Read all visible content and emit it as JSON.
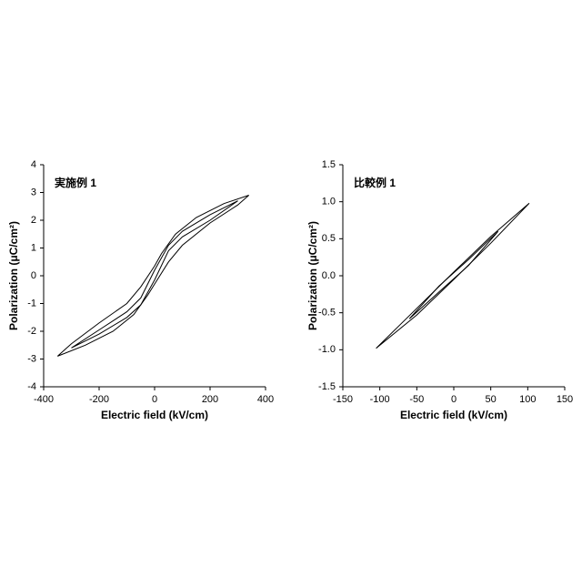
{
  "chart_data": [
    {
      "type": "line",
      "title": "実施例 1",
      "x_label": "Electric field (kV/cm)",
      "y_label": "Polarization (μC/cm²)",
      "xlim": [
        -400,
        400
      ],
      "ylim": [
        -4,
        4
      ],
      "xticks": [
        -400,
        -200,
        0,
        200,
        400
      ],
      "yticks": [
        -4,
        -3,
        -2,
        -1,
        0,
        1,
        2,
        3,
        4
      ],
      "grid": false,
      "series": [
        {
          "color": "#000000",
          "x": [
            340,
            250,
            150,
            75,
            25,
            0,
            -50,
            -100,
            -200,
            -300,
            -350,
            -250,
            -150,
            -75,
            -25,
            0,
            50,
            100,
            200,
            300,
            340
          ],
          "values": [
            2.9,
            2.6,
            2.1,
            1.5,
            0.8,
            0.35,
            -0.4,
            -1.0,
            -1.7,
            -2.45,
            -2.9,
            -2.5,
            -2.0,
            -1.4,
            -0.7,
            -0.3,
            0.5,
            1.1,
            1.9,
            2.55,
            2.9
          ]
        },
        {
          "color": "#000000",
          "x": [
            300,
            200,
            100,
            50,
            0,
            -50,
            -100,
            -200,
            -300,
            -200,
            -100,
            -50,
            0,
            50,
            100,
            200,
            300
          ],
          "values": [
            2.7,
            2.2,
            1.6,
            1.1,
            0.2,
            -0.8,
            -1.3,
            -1.95,
            -2.6,
            -2.1,
            -1.5,
            -1.05,
            -0.15,
            0.9,
            1.4,
            2.0,
            2.7
          ]
        }
      ]
    },
    {
      "type": "line",
      "title": "比較例 1",
      "x_label": "Electric field (kV/cm)",
      "y_label": "Polarization (μC/cm²)",
      "xlim": [
        -150,
        150
      ],
      "ylim": [
        -1.5,
        1.5
      ],
      "xticks": [
        -150,
        -100,
        -50,
        0,
        50,
        100,
        150
      ],
      "yticks": [
        -1.5,
        {
          "value": -1,
          "label": "-1.0"
        },
        -0.5,
        {
          "value": 0,
          "label": "0.0"
        },
        0.5,
        {
          "value": 1,
          "label": "1.0"
        },
        1.5
      ],
      "grid": false,
      "series": [
        {
          "color": "#000000",
          "x": [
            102,
            50,
            0,
            -50,
            -105,
            -50,
            0,
            50,
            102
          ],
          "values": [
            0.98,
            0.53,
            0.05,
            -0.44,
            -0.98,
            -0.53,
            -0.05,
            0.44,
            0.98
          ]
        },
        {
          "color": "#000000",
          "x": [
            60,
            20,
            -20,
            -60,
            -20,
            20,
            60
          ],
          "values": [
            0.6,
            0.22,
            -0.14,
            -0.58,
            -0.22,
            0.14,
            0.6
          ]
        }
      ]
    }
  ]
}
